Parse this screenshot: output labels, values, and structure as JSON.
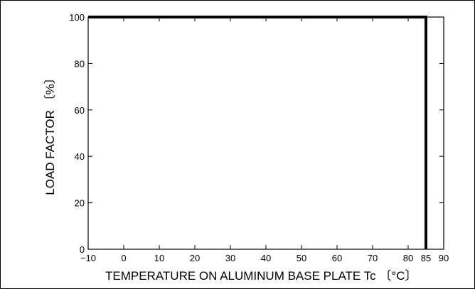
{
  "chart_data": {
    "type": "line",
    "xlabel": "TEMPERATURE  ON  ALUMINUM  BASE  PLATE  Tc 〔°C〕",
    "ylabel": "LOAD FACTOR 〔%〕",
    "xlim": [
      -10,
      90
    ],
    "ylim": [
      0,
      100
    ],
    "x_ticks": [
      -10,
      0,
      10,
      20,
      30,
      40,
      50,
      60,
      70,
      80,
      85,
      90
    ],
    "x_tick_labels": [
      "−10",
      "0",
      "10",
      "20",
      "30",
      "40",
      "50",
      "60",
      "70",
      "80",
      "85",
      "90"
    ],
    "y_ticks": [
      0,
      20,
      40,
      60,
      80,
      100
    ],
    "y_tick_labels": [
      "0",
      "20",
      "40",
      "60",
      "80",
      "100"
    ],
    "grid": false,
    "series": [
      {
        "points": [
          [
            -10,
            100
          ],
          [
            85,
            100
          ],
          [
            85,
            0
          ]
        ],
        "color": "#000000"
      }
    ]
  }
}
